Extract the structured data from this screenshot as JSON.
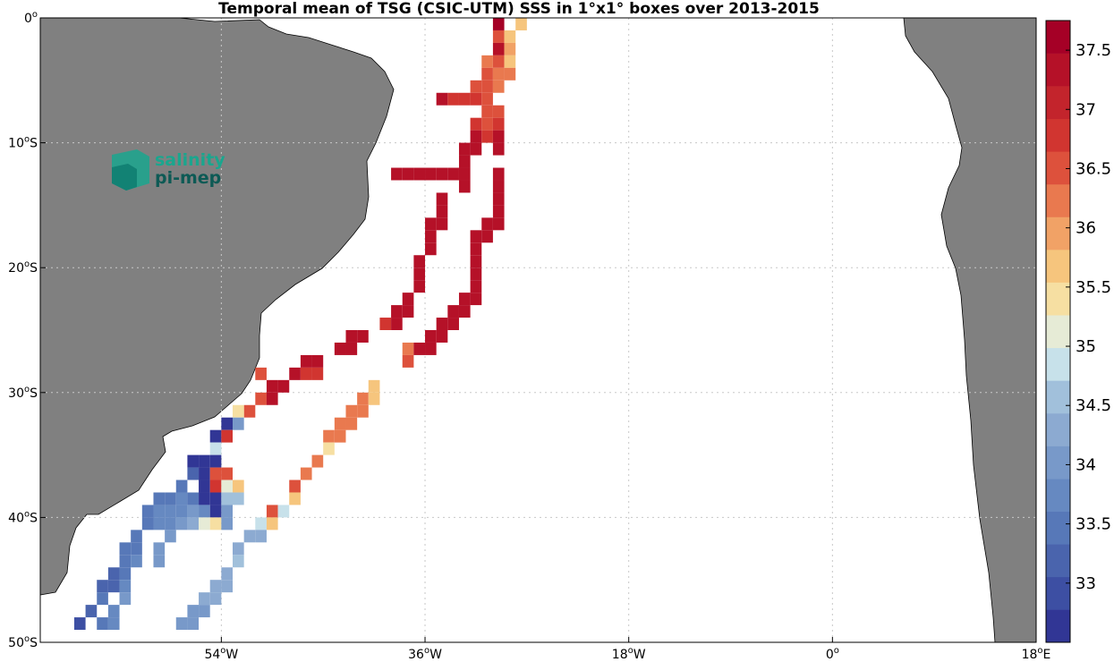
{
  "chart_data": {
    "type": "heatmap",
    "title": "Temporal mean of TSG (CSIC-UTM) SSS in 1°x1° boxes over 2013-2015",
    "xlabel": "",
    "ylabel": "",
    "x_range": [
      -70,
      18
    ],
    "y_range": [
      -50,
      0
    ],
    "x_ticks": [
      {
        "value": -54,
        "label": "54",
        "suffix": "W"
      },
      {
        "value": -36,
        "label": "36",
        "suffix": "W"
      },
      {
        "value": -18,
        "label": "18",
        "suffix": "W"
      },
      {
        "value": 0,
        "label": "0",
        "suffix": ""
      },
      {
        "value": 18,
        "label": "18",
        "suffix": "E"
      }
    ],
    "y_ticks": [
      {
        "value": 0,
        "label": "0",
        "suffix": ""
      },
      {
        "value": -10,
        "label": "10",
        "suffix": "S"
      },
      {
        "value": -20,
        "label": "20",
        "suffix": "S"
      },
      {
        "value": -30,
        "label": "30",
        "suffix": "S"
      },
      {
        "value": -40,
        "label": "40",
        "suffix": "S"
      },
      {
        "value": -50,
        "label": "50",
        "suffix": "S"
      }
    ],
    "grid": true,
    "colorbar": {
      "vmin": 32.5,
      "vmax": 37.75,
      "ticks": [
        33,
        33.5,
        34,
        34.5,
        35,
        35.5,
        36,
        36.5,
        37,
        37.5
      ],
      "colors": [
        "#313695",
        "#3d4fa3",
        "#4a64ad",
        "#5778b8",
        "#6689c1",
        "#7899c9",
        "#8caad1",
        "#a1c0db",
        "#c7e1ea",
        "#e6ebd6",
        "#f6dfa2",
        "#f6c57d",
        "#f1a266",
        "#e9794f",
        "#dd513c",
        "#d13530",
        "#c3242c",
        "#b51128",
        "#a50026"
      ],
      "position": "right"
    },
    "cells": [
      {
        "lon": -29.5,
        "lat": -0.5,
        "sss": 37.5
      },
      {
        "lon": -29.5,
        "lat": -1.5,
        "sss": 36.4
      },
      {
        "lon": -28.5,
        "lat": -1.5,
        "sss": 35.8
      },
      {
        "lon": -27.5,
        "lat": -0.5,
        "sss": 35.7
      },
      {
        "lon": -29.5,
        "lat": -2.5,
        "sss": 37.4
      },
      {
        "lon": -28.5,
        "lat": -2.5,
        "sss": 35.9
      },
      {
        "lon": -29.5,
        "lat": -3.5,
        "sss": 36.4
      },
      {
        "lon": -28.5,
        "lat": -3.5,
        "sss": 35.7
      },
      {
        "lon": -30.5,
        "lat": -3.5,
        "sss": 36.3
      },
      {
        "lon": -30.5,
        "lat": -4.5,
        "sss": 36.5
      },
      {
        "lon": -29.5,
        "lat": -4.5,
        "sss": 36.3
      },
      {
        "lon": -28.5,
        "lat": -4.5,
        "sss": 36.1
      },
      {
        "lon": -29.5,
        "lat": -5.5,
        "sss": 36.3
      },
      {
        "lon": -31.5,
        "lat": -5.5,
        "sss": 36.4
      },
      {
        "lon": -30.5,
        "lat": -5.5,
        "sss": 36.6
      },
      {
        "lon": -34.5,
        "lat": -6.5,
        "sss": 37.4
      },
      {
        "lon": -33.5,
        "lat": -6.5,
        "sss": 36.8
      },
      {
        "lon": -32.5,
        "lat": -6.5,
        "sss": 36.8
      },
      {
        "lon": -31.5,
        "lat": -6.5,
        "sss": 36.8
      },
      {
        "lon": -30.5,
        "lat": -6.5,
        "sss": 36.6
      },
      {
        "lon": -30.5,
        "lat": -7.5,
        "sss": 36.6
      },
      {
        "lon": -29.5,
        "lat": -7.5,
        "sss": 36.6
      },
      {
        "lon": -30.5,
        "lat": -8.5,
        "sss": 36.6
      },
      {
        "lon": -29.5,
        "lat": -8.5,
        "sss": 36.8
      },
      {
        "lon": -31.5,
        "lat": -8.5,
        "sss": 36.8
      },
      {
        "lon": -31.5,
        "lat": -9.5,
        "sss": 37.2
      },
      {
        "lon": -30.5,
        "lat": -9.5,
        "sss": 36.8
      },
      {
        "lon": -29.5,
        "lat": -9.5,
        "sss": 37.3
      },
      {
        "lon": -32.5,
        "lat": -10.5,
        "sss": 37.2
      },
      {
        "lon": -31.5,
        "lat": -10.5,
        "sss": 37.2
      },
      {
        "lon": -29.5,
        "lat": -10.5,
        "sss": 37.3
      },
      {
        "lon": -32.5,
        "lat": -11.5,
        "sss": 37.2
      },
      {
        "lon": -32.5,
        "lat": -12.5,
        "sss": 37.2
      },
      {
        "lon": -29.5,
        "lat": -12.5,
        "sss": 37.3
      },
      {
        "lon": -38.5,
        "lat": -12.5,
        "sss": 37.2
      },
      {
        "lon": -37.5,
        "lat": -12.5,
        "sss": 37.2
      },
      {
        "lon": -36.5,
        "lat": -12.5,
        "sss": 37.2
      },
      {
        "lon": -35.5,
        "lat": -12.5,
        "sss": 37.2
      },
      {
        "lon": -34.5,
        "lat": -12.5,
        "sss": 37.2
      },
      {
        "lon": -33.5,
        "lat": -12.5,
        "sss": 37.2
      },
      {
        "lon": -32.5,
        "lat": -13.5,
        "sss": 37.2
      },
      {
        "lon": -29.5,
        "lat": -13.5,
        "sss": 37.3
      },
      {
        "lon": -34.5,
        "lat": -14.5,
        "sss": 37.2
      },
      {
        "lon": -29.5,
        "lat": -14.5,
        "sss": 37.3
      },
      {
        "lon": -34.5,
        "lat": -15.5,
        "sss": 37.2
      },
      {
        "lon": -29.5,
        "lat": -15.5,
        "sss": 37.3
      },
      {
        "lon": -34.5,
        "lat": -16.5,
        "sss": 37.2
      },
      {
        "lon": -35.5,
        "lat": -16.5,
        "sss": 37.2
      },
      {
        "lon": -30.5,
        "lat": -16.5,
        "sss": 37.2
      },
      {
        "lon": -29.5,
        "lat": -16.5,
        "sss": 37.3
      },
      {
        "lon": -35.5,
        "lat": -17.5,
        "sss": 37.2
      },
      {
        "lon": -31.5,
        "lat": -17.5,
        "sss": 37.2
      },
      {
        "lon": -30.5,
        "lat": -17.5,
        "sss": 37.2
      },
      {
        "lon": -35.5,
        "lat": -18.5,
        "sss": 37.2
      },
      {
        "lon": -31.5,
        "lat": -18.5,
        "sss": 37.2
      },
      {
        "lon": -36.5,
        "lat": -19.5,
        "sss": 37.2
      },
      {
        "lon": -31.5,
        "lat": -19.5,
        "sss": 37.2
      },
      {
        "lon": -36.5,
        "lat": -20.5,
        "sss": 37.2
      },
      {
        "lon": -31.5,
        "lat": -20.5,
        "sss": 37.2
      },
      {
        "lon": -36.5,
        "lat": -21.5,
        "sss": 37.2
      },
      {
        "lon": -31.5,
        "lat": -21.5,
        "sss": 37.2
      },
      {
        "lon": -37.5,
        "lat": -22.5,
        "sss": 37.2
      },
      {
        "lon": -32.5,
        "lat": -22.5,
        "sss": 37.2
      },
      {
        "lon": -31.5,
        "lat": -22.5,
        "sss": 37.2
      },
      {
        "lon": -37.5,
        "lat": -23.5,
        "sss": 37.2
      },
      {
        "lon": -38.5,
        "lat": -23.5,
        "sss": 37.2
      },
      {
        "lon": -33.5,
        "lat": -23.5,
        "sss": 37.2
      },
      {
        "lon": -32.5,
        "lat": -23.5,
        "sss": 37.2
      },
      {
        "lon": -39.5,
        "lat": -24.5,
        "sss": 36.8
      },
      {
        "lon": -38.5,
        "lat": -24.5,
        "sss": 37.2
      },
      {
        "lon": -34.5,
        "lat": -24.5,
        "sss": 37.2
      },
      {
        "lon": -33.5,
        "lat": -24.5,
        "sss": 37.2
      },
      {
        "lon": -42.5,
        "lat": -25.5,
        "sss": 37.2
      },
      {
        "lon": -41.5,
        "lat": -25.5,
        "sss": 37.2
      },
      {
        "lon": -35.5,
        "lat": -25.5,
        "sss": 37.2
      },
      {
        "lon": -34.5,
        "lat": -25.5,
        "sss": 37.2
      },
      {
        "lon": -43.5,
        "lat": -26.5,
        "sss": 37.2
      },
      {
        "lon": -42.5,
        "lat": -26.5,
        "sss": 37.2
      },
      {
        "lon": -37.5,
        "lat": -26.5,
        "sss": 36.2
      },
      {
        "lon": -36.5,
        "lat": -26.5,
        "sss": 37.2
      },
      {
        "lon": -35.5,
        "lat": -26.5,
        "sss": 37.2
      },
      {
        "lon": -46.5,
        "lat": -27.5,
        "sss": 37.2
      },
      {
        "lon": -45.5,
        "lat": -27.5,
        "sss": 37.2
      },
      {
        "lon": -37.5,
        "lat": -27.5,
        "sss": 36.6
      },
      {
        "lon": -47.5,
        "lat": -28.5,
        "sss": 37.2
      },
      {
        "lon": -46.5,
        "lat": -28.5,
        "sss": 36.8
      },
      {
        "lon": -45.5,
        "lat": -28.5,
        "sss": 36.8
      },
      {
        "lon": -50.5,
        "lat": -28.5,
        "sss": 36.4
      },
      {
        "lon": -49.5,
        "lat": -29.5,
        "sss": 37.2
      },
      {
        "lon": -48.5,
        "lat": -29.5,
        "sss": 37.2
      },
      {
        "lon": -40.5,
        "lat": -29.5,
        "sss": 35.8
      },
      {
        "lon": -50.5,
        "lat": -30.5,
        "sss": 36.6
      },
      {
        "lon": -49.5,
        "lat": -30.5,
        "sss": 37.2
      },
      {
        "lon": -41.5,
        "lat": -30.5,
        "sss": 36.2
      },
      {
        "lon": -40.5,
        "lat": -30.5,
        "sss": 35.8
      },
      {
        "lon": -51.5,
        "lat": -31.5,
        "sss": 36.6
      },
      {
        "lon": -52.5,
        "lat": -31.5,
        "sss": 35.3
      },
      {
        "lon": -42.5,
        "lat": -31.5,
        "sss": 36.2
      },
      {
        "lon": -41.5,
        "lat": -31.5,
        "sss": 36.2
      },
      {
        "lon": -53.5,
        "lat": -32.5,
        "sss": 32.7
      },
      {
        "lon": -52.5,
        "lat": -32.5,
        "sss": 34.0
      },
      {
        "lon": -43.5,
        "lat": -32.5,
        "sss": 36.2
      },
      {
        "lon": -42.5,
        "lat": -32.5,
        "sss": 36.2
      },
      {
        "lon": -54.5,
        "lat": -33.5,
        "sss": 32.7
      },
      {
        "lon": -53.5,
        "lat": -33.5,
        "sss": 36.8
      },
      {
        "lon": -44.5,
        "lat": -33.5,
        "sss": 36.2
      },
      {
        "lon": -43.5,
        "lat": -33.5,
        "sss": 36.2
      },
      {
        "lon": -54.5,
        "lat": -34.5,
        "sss": 34.8
      },
      {
        "lon": -44.5,
        "lat": -34.5,
        "sss": 35.3
      },
      {
        "lon": -45.5,
        "lat": -35.5,
        "sss": 36.2
      },
      {
        "lon": -56.5,
        "lat": -35.5,
        "sss": 32.7
      },
      {
        "lon": -55.5,
        "lat": -35.5,
        "sss": 32.7
      },
      {
        "lon": -54.5,
        "lat": -35.5,
        "sss": 32.7
      },
      {
        "lon": -56.5,
        "lat": -36.5,
        "sss": 33.2
      },
      {
        "lon": -55.5,
        "lat": -36.5,
        "sss": 32.7
      },
      {
        "lon": -54.5,
        "lat": -36.5,
        "sss": 36.6
      },
      {
        "lon": -53.5,
        "lat": -36.5,
        "sss": 36.6
      },
      {
        "lon": -46.5,
        "lat": -36.5,
        "sss": 36.2
      },
      {
        "lon": -57.5,
        "lat": -37.5,
        "sss": 33.5
      },
      {
        "lon": -55.5,
        "lat": -37.5,
        "sss": 32.7
      },
      {
        "lon": -54.5,
        "lat": -37.5,
        "sss": 36.8
      },
      {
        "lon": -53.5,
        "lat": -37.5,
        "sss": 35.2
      },
      {
        "lon": -52.5,
        "lat": -37.5,
        "sss": 35.8
      },
      {
        "lon": -47.5,
        "lat": -37.5,
        "sss": 36.4
      },
      {
        "lon": -59.5,
        "lat": -38.5,
        "sss": 33.5
      },
      {
        "lon": -58.5,
        "lat": -38.5,
        "sss": 33.5
      },
      {
        "lon": -57.5,
        "lat": -38.5,
        "sss": 33.7
      },
      {
        "lon": -56.5,
        "lat": -38.5,
        "sss": 33.5
      },
      {
        "lon": -55.5,
        "lat": -38.5,
        "sss": 32.7
      },
      {
        "lon": -54.5,
        "lat": -38.5,
        "sss": 32.7
      },
      {
        "lon": -53.5,
        "lat": -38.5,
        "sss": 34.6
      },
      {
        "lon": -52.5,
        "lat": -38.5,
        "sss": 34.6
      },
      {
        "lon": -47.5,
        "lat": -38.5,
        "sss": 35.8
      },
      {
        "lon": -60.5,
        "lat": -39.5,
        "sss": 33.5
      },
      {
        "lon": -59.5,
        "lat": -39.5,
        "sss": 33.7
      },
      {
        "lon": -58.5,
        "lat": -39.5,
        "sss": 33.7
      },
      {
        "lon": -57.5,
        "lat": -39.5,
        "sss": 33.7
      },
      {
        "lon": -56.5,
        "lat": -39.5,
        "sss": 33.9
      },
      {
        "lon": -55.5,
        "lat": -39.5,
        "sss": 33.7
      },
      {
        "lon": -54.5,
        "lat": -39.5,
        "sss": 32.7
      },
      {
        "lon": -53.5,
        "lat": -39.5,
        "sss": 33.9
      },
      {
        "lon": -49.5,
        "lat": -39.5,
        "sss": 36.4
      },
      {
        "lon": -48.5,
        "lat": -39.5,
        "sss": 34.8
      },
      {
        "lon": -60.5,
        "lat": -40.5,
        "sss": 33.5
      },
      {
        "lon": -59.5,
        "lat": -40.5,
        "sss": 33.7
      },
      {
        "lon": -58.5,
        "lat": -40.5,
        "sss": 33.7
      },
      {
        "lon": -57.5,
        "lat": -40.5,
        "sss": 33.9
      },
      {
        "lon": -56.5,
        "lat": -40.5,
        "sss": 34.3
      },
      {
        "lon": -55.5,
        "lat": -40.5,
        "sss": 35.0
      },
      {
        "lon": -54.5,
        "lat": -40.5,
        "sss": 35.3
      },
      {
        "lon": -53.5,
        "lat": -40.5,
        "sss": 34.0
      },
      {
        "lon": -50.5,
        "lat": -40.5,
        "sss": 34.8
      },
      {
        "lon": -49.5,
        "lat": -40.5,
        "sss": 35.8
      },
      {
        "lon": -61.5,
        "lat": -41.5,
        "sss": 33.5
      },
      {
        "lon": -58.5,
        "lat": -41.5,
        "sss": 33.9
      },
      {
        "lon": -51.5,
        "lat": -41.5,
        "sss": 34.3
      },
      {
        "lon": -50.5,
        "lat": -41.5,
        "sss": 34.3
      },
      {
        "lon": -62.5,
        "lat": -42.5,
        "sss": 33.5
      },
      {
        "lon": -61.5,
        "lat": -42.5,
        "sss": 33.5
      },
      {
        "lon": -59.5,
        "lat": -42.5,
        "sss": 34.0
      },
      {
        "lon": -52.5,
        "lat": -42.5,
        "sss": 34.3
      },
      {
        "lon": -62.5,
        "lat": -43.5,
        "sss": 33.5
      },
      {
        "lon": -61.5,
        "lat": -43.5,
        "sss": 33.7
      },
      {
        "lon": -59.5,
        "lat": -43.5,
        "sss": 34.0
      },
      {
        "lon": -52.5,
        "lat": -43.5,
        "sss": 34.6
      },
      {
        "lon": -63.5,
        "lat": -44.5,
        "sss": 33.2
      },
      {
        "lon": -62.5,
        "lat": -44.5,
        "sss": 33.5
      },
      {
        "lon": -53.5,
        "lat": -44.5,
        "sss": 34.3
      },
      {
        "lon": -64.5,
        "lat": -45.5,
        "sss": 33.2
      },
      {
        "lon": -63.5,
        "lat": -45.5,
        "sss": 33.2
      },
      {
        "lon": -62.5,
        "lat": -45.5,
        "sss": 33.7
      },
      {
        "lon": -54.5,
        "lat": -45.5,
        "sss": 34.3
      },
      {
        "lon": -53.5,
        "lat": -45.5,
        "sss": 34.3
      },
      {
        "lon": -64.5,
        "lat": -46.5,
        "sss": 33.5
      },
      {
        "lon": -62.5,
        "lat": -46.5,
        "sss": 33.9
      },
      {
        "lon": -55.5,
        "lat": -46.5,
        "sss": 34.3
      },
      {
        "lon": -54.5,
        "lat": -46.5,
        "sss": 34.3
      },
      {
        "lon": -65.5,
        "lat": -47.5,
        "sss": 33.2
      },
      {
        "lon": -63.5,
        "lat": -47.5,
        "sss": 33.7
      },
      {
        "lon": -56.5,
        "lat": -47.5,
        "sss": 34.0
      },
      {
        "lon": -55.5,
        "lat": -47.5,
        "sss": 33.9
      },
      {
        "lon": -66.5,
        "lat": -48.5,
        "sss": 33.0
      },
      {
        "lon": -64.5,
        "lat": -48.5,
        "sss": 33.5
      },
      {
        "lon": -63.5,
        "lat": -48.5,
        "sss": 33.7
      },
      {
        "lon": -57.5,
        "lat": -48.5,
        "sss": 33.9
      },
      {
        "lon": -56.5,
        "lat": -48.5,
        "sss": 33.9
      }
    ]
  },
  "logo": {
    "line1": "salinity",
    "line2": "pi-mep",
    "color1": "#1aa68e",
    "color2": "#0d5a55"
  },
  "colors": {
    "land": "#808080",
    "coast": "#000000",
    "grid": "#c8c8c8"
  }
}
